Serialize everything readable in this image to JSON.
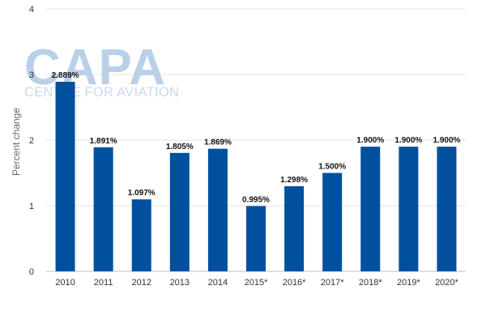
{
  "watermark": {
    "logo": "CAPA",
    "tagline": "CENTRE FOR AVIATION"
  },
  "chart_data": {
    "type": "bar",
    "title": "",
    "xlabel": "",
    "ylabel": "Percent change",
    "ylim": [
      0,
      4
    ],
    "yticks": [
      "0",
      "1",
      "2",
      "3",
      "4"
    ],
    "grid": true,
    "bar_color": "#00509e",
    "categories": [
      "2010",
      "2011",
      "2012",
      "2013",
      "2014",
      "2015*",
      "2016*",
      "2017*",
      "2018*",
      "2019*",
      "2020*"
    ],
    "values": [
      2.889,
      1.891,
      1.097,
      1.805,
      1.869,
      0.995,
      1.298,
      1.5,
      1.9,
      1.9,
      1.9
    ],
    "data_labels": [
      "2.889%",
      "1.891%",
      "1.097%",
      "1.805%",
      "1.869%",
      "0.995%",
      "1.298%",
      "1.500%",
      "1.900%",
      "1.900%",
      "1.900%"
    ]
  }
}
